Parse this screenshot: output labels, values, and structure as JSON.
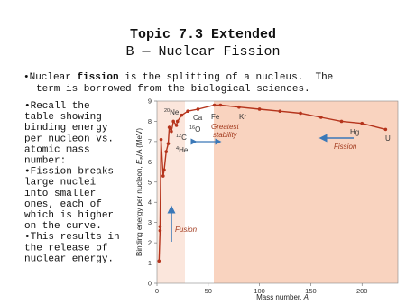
{
  "slide": {
    "title": "Topic 7.3 Extended",
    "subtitle": "B — Nuclear Fission",
    "intro": {
      "line1_a": "•Nuclear ",
      "line1_bold": "fission",
      "line1_b": " is the splitting of a nucleus.  The",
      "line2": "term is borrowed from the biological sciences."
    },
    "bullets": [
      "•Recall the",
      "table showing",
      "binding energy",
      "per nucleon vs.",
      "atomic mass",
      "number:",
      "•Fission breaks",
      "large nuclei",
      "into smaller",
      "ones, each of",
      "which is higher",
      "on the curve.",
      "•This results in",
      "the release of",
      "nuclear energy."
    ]
  },
  "chart_data": {
    "type": "line",
    "x": [
      2,
      3,
      3,
      4,
      6,
      7,
      9,
      11,
      12,
      14,
      16,
      19,
      20,
      24,
      30,
      40,
      56,
      62,
      80,
      100,
      120,
      140,
      160,
      180,
      200,
      223
    ],
    "series": [
      {
        "color": "#b5341c",
        "values": [
          1.1,
          2.6,
          2.8,
          7.1,
          5.3,
          5.6,
          6.5,
          6.9,
          7.7,
          7.5,
          8.0,
          7.8,
          8.0,
          8.3,
          8.5,
          8.6,
          8.8,
          8.8,
          8.7,
          8.6,
          8.5,
          8.4,
          8.2,
          8.0,
          7.9,
          7.6
        ]
      }
    ],
    "markers": true,
    "xlim": [
      0,
      235
    ],
    "ylim": [
      0,
      9
    ],
    "xticks": [
      0,
      50,
      100,
      150,
      200
    ],
    "yticks": [
      0,
      1,
      2,
      3,
      4,
      5,
      6,
      7,
      8,
      9
    ],
    "x_label": {
      "text": "Mass number, ",
      "var": "A"
    },
    "y_label": {
      "text": "Binding energy per nucleon, ",
      "var": "E",
      "sub": "B",
      "after": "/A (MeV)"
    },
    "annotations": {
      "ne": {
        "sup": "20",
        "text": "Ne"
      },
      "ca": "Ca",
      "o": {
        "sup": "16",
        "text": "O"
      },
      "c": {
        "sup": "12",
        "text": "C"
      },
      "he": {
        "sup": "4",
        "text": "He"
      },
      "fe": "Fe",
      "kr": "Kr",
      "stability1": "Greatest",
      "stability2": "stability",
      "hg": "Hg",
      "u": "U",
      "fission": "Fission",
      "fusion": "Fusion"
    }
  }
}
